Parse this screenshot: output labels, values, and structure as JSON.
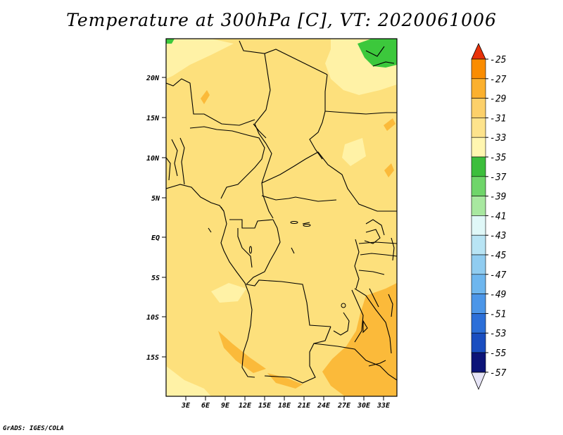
{
  "title": "Temperature at 300hPa [C], VT: 2020061006",
  "credit": "GrADS: IGES/COLA",
  "map": {
    "lat_ticks": [
      "20N",
      "15N",
      "10N",
      "5N",
      "EQ",
      "5S",
      "10S",
      "15S"
    ],
    "lon_ticks": [
      "3E",
      "6E",
      "9E",
      "12E",
      "15E",
      "18E",
      "21E",
      "24E",
      "27E",
      "30E",
      "33E"
    ],
    "lon_range": [
      "0E",
      "35E"
    ],
    "lat_range": [
      "20S",
      "24N"
    ]
  },
  "colorbar": {
    "labels": [
      "-25",
      "-27",
      "-29",
      "-31",
      "-33",
      "-35",
      "-37",
      "-39",
      "-41",
      "-43",
      "-45",
      "-47",
      "-49",
      "-51",
      "-53",
      "-55",
      "-57"
    ],
    "colors": [
      "#f05a1a",
      "#fa8c00",
      "#fbb02e",
      "#fcd06a",
      "#fde38c",
      "#fff6b0",
      "#3cbe3c",
      "#6fd56a",
      "#a8e8a0",
      "#e0f8f8",
      "#b8e4f4",
      "#90ccf0",
      "#6eb6ee",
      "#4c96e8",
      "#2c6fd8",
      "#1a4ec0",
      "#0c1478",
      "#0a0c5a"
    ],
    "top_arrow_color": "#e8320a",
    "bottom_arrow_color": "#e6e4f6"
  },
  "fill_colors": {
    "base": "#fde07c",
    "light": "#fff2a6",
    "orange": "#fbba3a",
    "green": "#3cc83c"
  }
}
